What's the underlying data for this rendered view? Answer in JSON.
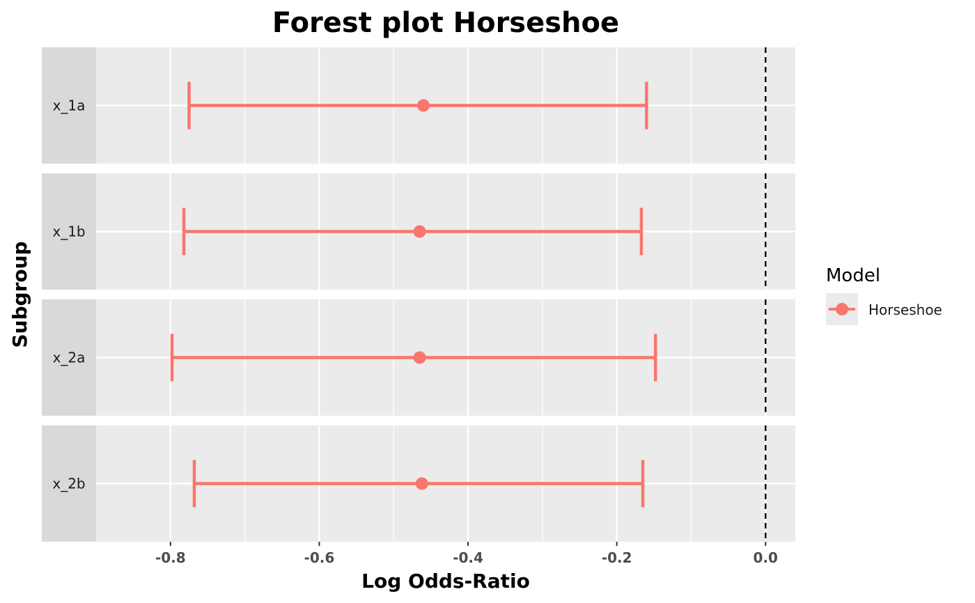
{
  "chart_data": {
    "type": "forest",
    "title": "Forest plot Horseshoe",
    "xlabel": "Log Odds-Ratio",
    "ylabel": "Subgroup",
    "xlim": [
      -0.9,
      0.04
    ],
    "x_ticks": [
      -0.8,
      -0.6,
      -0.4,
      -0.2,
      0.0
    ],
    "x_tick_labels": [
      "-0.8",
      "-0.6",
      "-0.4",
      "-0.2",
      "0.0"
    ],
    "reference_line": 0.0,
    "grid": true,
    "legend": {
      "title": "Model",
      "position": "right",
      "entries": [
        {
          "name": "Horseshoe",
          "color": "#f8766d"
        }
      ]
    },
    "series": [
      {
        "name": "Horseshoe",
        "color": "#f8766d",
        "rows": [
          {
            "label": "x_1a",
            "estimate": -0.46,
            "lower": -0.775,
            "upper": -0.16
          },
          {
            "label": "x_1b",
            "estimate": -0.465,
            "lower": -0.782,
            "upper": -0.167
          },
          {
            "label": "x_2a",
            "estimate": -0.465,
            "lower": -0.798,
            "upper": -0.148
          },
          {
            "label": "x_2b",
            "estimate": -0.462,
            "lower": -0.768,
            "upper": -0.165
          }
        ]
      }
    ]
  }
}
